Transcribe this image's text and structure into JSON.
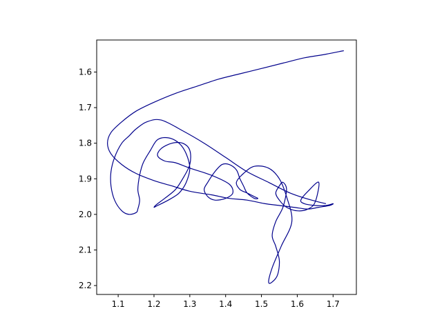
{
  "chart_data": {
    "type": "line",
    "title": "",
    "xlabel": "",
    "ylabel": "",
    "xlim": [
      1.04,
      1.765
    ],
    "ylim": [
      2.225,
      1.51
    ],
    "y_inverted": true,
    "grid": false,
    "xticks": [
      "1.1",
      "1.2",
      "1.3",
      "1.4",
      "1.5",
      "1.6",
      "1.7"
    ],
    "yticks": [
      "1.6",
      "1.7",
      "1.8",
      "1.9",
      "2.0",
      "2.1",
      "2.2"
    ],
    "line_color": "#00008b",
    "series": [
      {
        "x": [
          1.73,
          1.68,
          1.62,
          1.56,
          1.5,
          1.44,
          1.38,
          1.32,
          1.26,
          1.2,
          1.15,
          1.11,
          1.08,
          1.07,
          1.08,
          1.11,
          1.15,
          1.2,
          1.25,
          1.3,
          1.36,
          1.41,
          1.46,
          1.51,
          1.55,
          1.59,
          1.63,
          1.66,
          1.69,
          1.7,
          1.68,
          1.65,
          1.62,
          1.61,
          1.63,
          1.66,
          1.65,
          1.63,
          1.6,
          1.57,
          1.55,
          1.54,
          1.55,
          1.56,
          1.57,
          1.56,
          1.54,
          1.53,
          1.54,
          1.55,
          1.545,
          1.53,
          1.52,
          1.53,
          1.555,
          1.585,
          1.57,
          1.55,
          1.52,
          1.48,
          1.45,
          1.43,
          1.44,
          1.46,
          1.48,
          1.49,
          1.48,
          1.46,
          1.45,
          1.44,
          1.43,
          1.41,
          1.39,
          1.37,
          1.35,
          1.34,
          1.35,
          1.37,
          1.4,
          1.42,
          1.41,
          1.36,
          1.3,
          1.26,
          1.23,
          1.21,
          1.22,
          1.25,
          1.28,
          1.3,
          1.3,
          1.28,
          1.26,
          1.23,
          1.21,
          1.2,
          1.21,
          1.24,
          1.27,
          1.29,
          1.3,
          1.29,
          1.27,
          1.24,
          1.21,
          1.19,
          1.17,
          1.16,
          1.155,
          1.16,
          1.155,
          1.15,
          1.13,
          1.11,
          1.09,
          1.08,
          1.08,
          1.09,
          1.11,
          1.13,
          1.15,
          1.18,
          1.22,
          1.28,
          1.34,
          1.4,
          1.46,
          1.52,
          1.58,
          1.64,
          1.68
        ],
        "y": [
          1.54,
          1.55,
          1.56,
          1.575,
          1.59,
          1.605,
          1.62,
          1.64,
          1.66,
          1.685,
          1.71,
          1.74,
          1.77,
          1.8,
          1.83,
          1.86,
          1.885,
          1.905,
          1.92,
          1.935,
          1.945,
          1.955,
          1.96,
          1.97,
          1.975,
          1.98,
          1.985,
          1.98,
          1.975,
          1.97,
          1.975,
          1.975,
          1.97,
          1.96,
          1.935,
          1.91,
          1.965,
          1.985,
          1.99,
          1.98,
          1.96,
          1.94,
          1.92,
          1.91,
          1.93,
          1.98,
          2.02,
          2.06,
          2.09,
          2.13,
          2.17,
          2.19,
          2.19,
          2.15,
          2.09,
          2.02,
          1.95,
          1.9,
          1.87,
          1.865,
          1.885,
          1.91,
          1.93,
          1.94,
          1.95,
          1.955,
          1.955,
          1.94,
          1.92,
          1.9,
          1.875,
          1.86,
          1.86,
          1.88,
          1.91,
          1.93,
          1.95,
          1.96,
          1.955,
          1.94,
          1.915,
          1.89,
          1.87,
          1.855,
          1.85,
          1.835,
          1.815,
          1.8,
          1.8,
          1.82,
          1.86,
          1.9,
          1.93,
          1.955,
          1.97,
          1.98,
          1.975,
          1.96,
          1.94,
          1.91,
          1.87,
          1.83,
          1.8,
          1.785,
          1.79,
          1.82,
          1.855,
          1.89,
          1.93,
          1.96,
          1.985,
          1.995,
          2.0,
          1.99,
          1.96,
          1.92,
          1.88,
          1.84,
          1.8,
          1.78,
          1.76,
          1.74,
          1.735,
          1.765,
          1.8,
          1.84,
          1.88,
          1.91,
          1.94,
          1.96,
          1.97
        ]
      }
    ]
  }
}
